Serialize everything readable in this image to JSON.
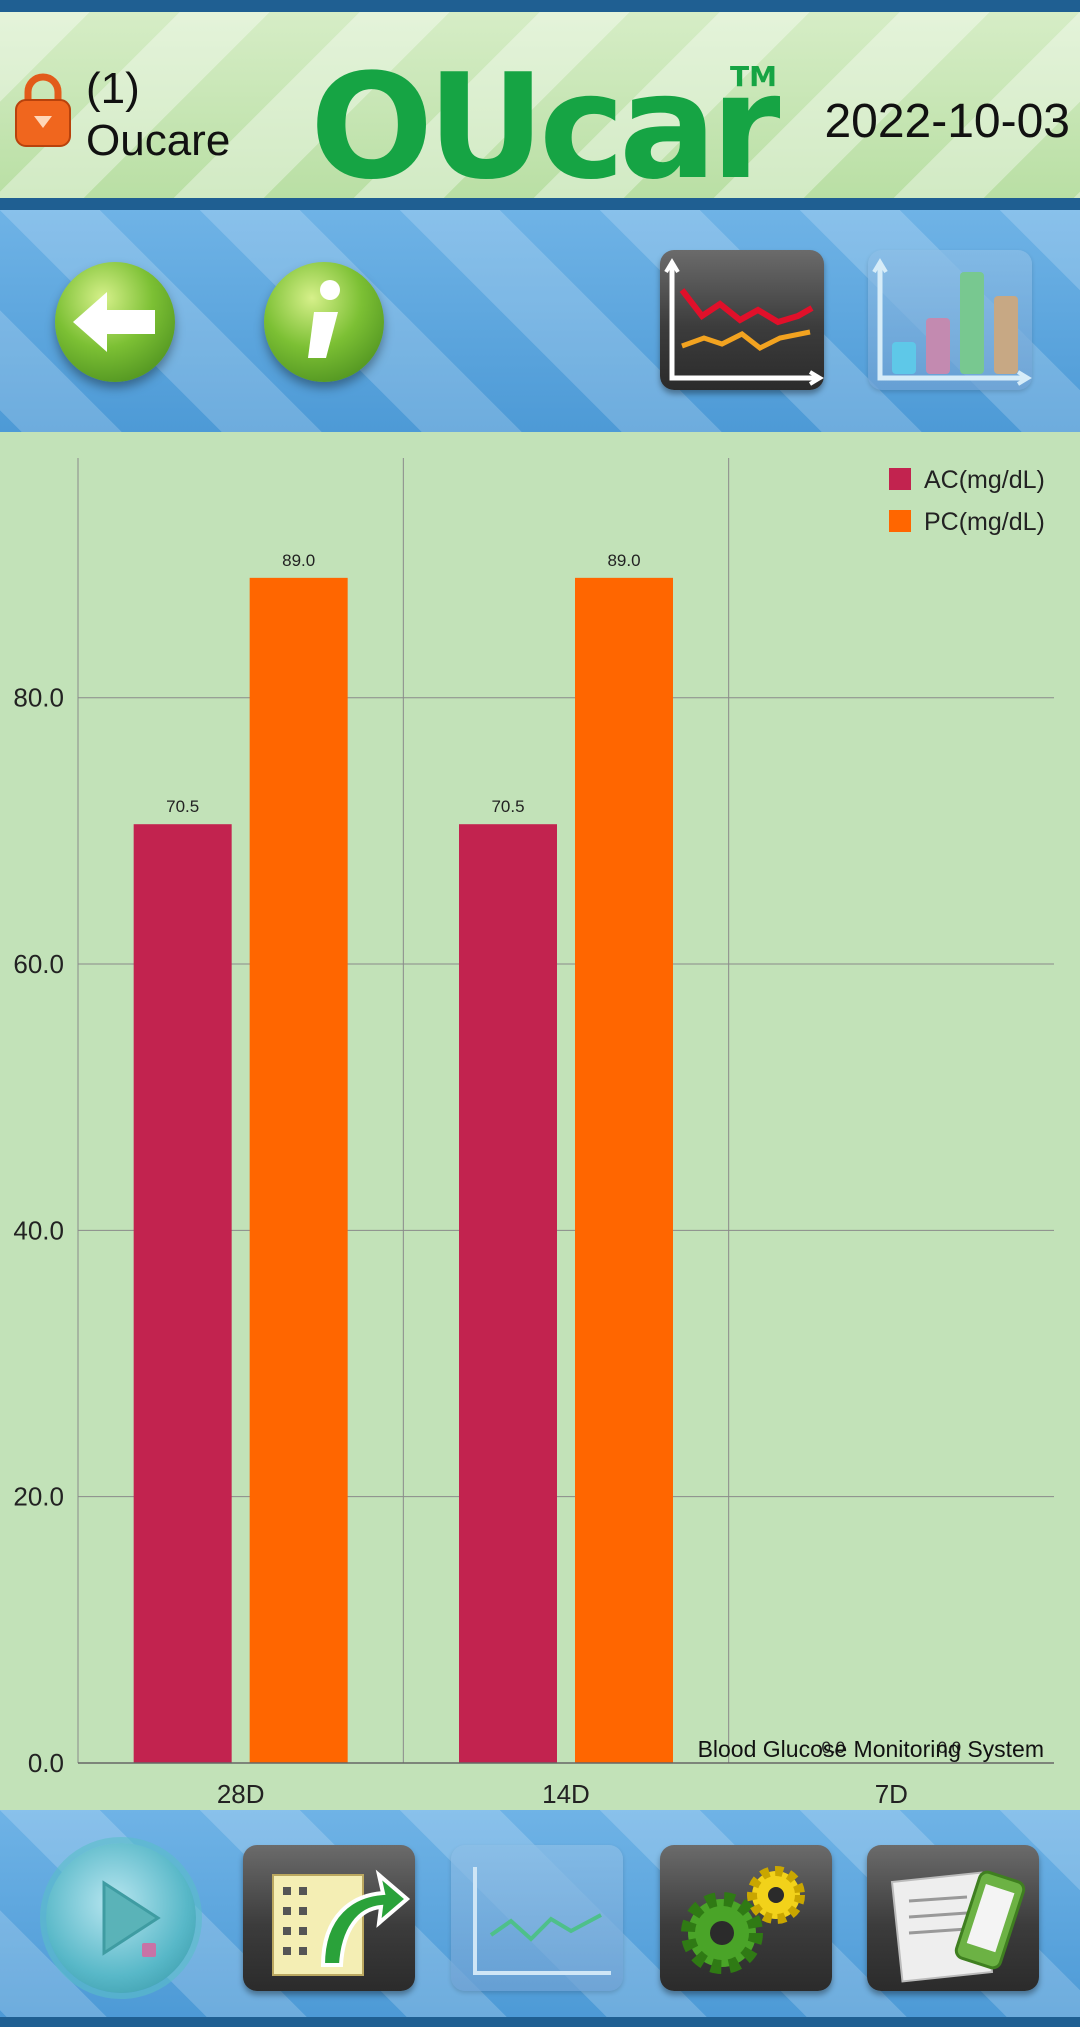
{
  "header": {
    "user_number": "(1)",
    "user_name": "Oucare",
    "logo_text": "OUcare",
    "trademark": "TM",
    "date": "2022-10-03"
  },
  "toolbar": {
    "back_icon": "back-arrow-icon",
    "info_icon": "info-icon",
    "line_chart_icon": "line-chart-icon",
    "bar_chart_icon": "bar-chart-icon"
  },
  "chart_data": {
    "type": "bar",
    "categories": [
      "28D",
      "14D",
      "7D"
    ],
    "series": [
      {
        "name": "AC(mg/dL)",
        "color": "#c2234f",
        "values": [
          70.5,
          70.5,
          0
        ]
      },
      {
        "name": "PC(mg/dL)",
        "color": "#ff6600",
        "values": [
          89.0,
          89.0,
          0
        ]
      }
    ],
    "value_labels": [
      [
        "70.5",
        "70.5",
        "0.0"
      ],
      [
        "89.0",
        "89.0",
        "0.0"
      ]
    ],
    "yticks": [
      "0.0",
      "20.0",
      "40.0",
      "60.0",
      "80.0"
    ],
    "ylim": [
      0,
      98
    ],
    "watermark": "Blood Glucose Monitoring System",
    "legend_position": "top-right",
    "grid": true
  },
  "bottombar": {
    "icons": [
      "play-record-icon",
      "data-transfer-icon",
      "trend-chart-icon",
      "settings-gears-icon",
      "mobile-device-icon"
    ]
  },
  "colors": {
    "header_green": "#b9dfa4",
    "toolbar_blue": "#5aa6df",
    "chart_bg": "#c2e2b8",
    "brand_green": "#16a444"
  }
}
